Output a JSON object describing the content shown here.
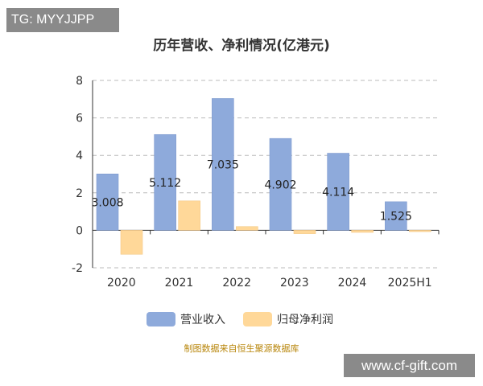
{
  "watermark_top": "TG: MYYJJPP",
  "watermark_bottom": "www.cf-gift.com",
  "chart_data": {
    "type": "bar",
    "title": "历年营收、净利情况(亿港元)",
    "source": "制图数据来自恒生聚源数据库",
    "categories": [
      "2020",
      "2021",
      "2022",
      "2023",
      "2024",
      "2025H1"
    ],
    "ylim": [
      -2,
      8
    ],
    "yticks": [
      -2,
      0,
      2,
      4,
      6,
      8
    ],
    "grid": true,
    "legend_position": "bottom",
    "series": [
      {
        "name": "营业收入",
        "color": "#8eaadb",
        "values": [
          3.008,
          5.112,
          7.035,
          4.902,
          4.114,
          1.525
        ],
        "labels": [
          "3.008",
          "5.112",
          "7.035",
          "4.902",
          "4.114",
          "1.525"
        ]
      },
      {
        "name": "归母净利润",
        "color": "#ffd899",
        "values": [
          -1.28,
          1.57,
          0.2,
          -0.18,
          -0.11,
          -0.07
        ]
      }
    ]
  }
}
